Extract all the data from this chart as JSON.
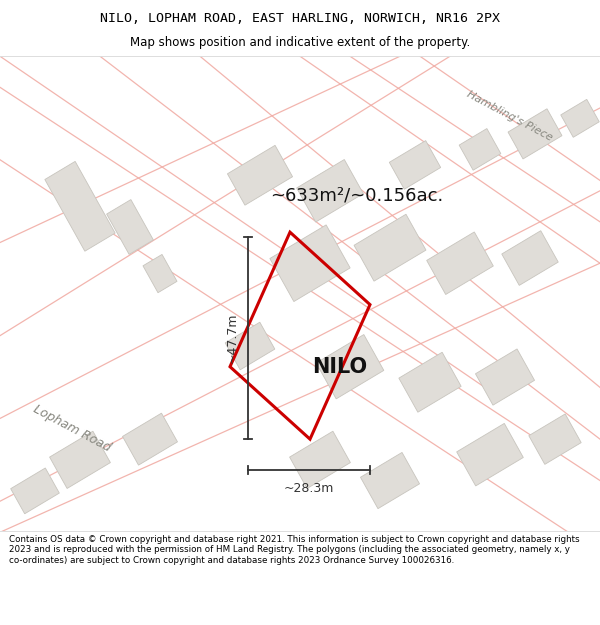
{
  "title_line1": "NILO, LOPHAM ROAD, EAST HARLING, NORWICH, NR16 2PX",
  "title_line2": "Map shows position and indicative extent of the property.",
  "footer_text": "Contains OS data © Crown copyright and database right 2021. This information is subject to Crown copyright and database rights 2023 and is reproduced with the permission of HM Land Registry. The polygons (including the associated geometry, namely x, y co-ordinates) are subject to Crown copyright and database rights 2023 Ordnance Survey 100026316.",
  "property_label": "NILO",
  "area_label": "~633m²/~0.156ac.",
  "dim_width": "~28.3m",
  "dim_height": "~47.7m",
  "map_bg": "#f5f3f0",
  "plot_outline_color": "#cc0000",
  "road_text_lopham": "Lopham Road",
  "road_text_hambling": "Hambling's Piece",
  "building_color": "#e0ddd8",
  "building_edge": "#c8c5be",
  "road_line_color": "#f0a8a0",
  "title_bg": "#ffffff",
  "footer_bg": "#ffffff",
  "dim_color": "#333333",
  "label_color": "#111111"
}
